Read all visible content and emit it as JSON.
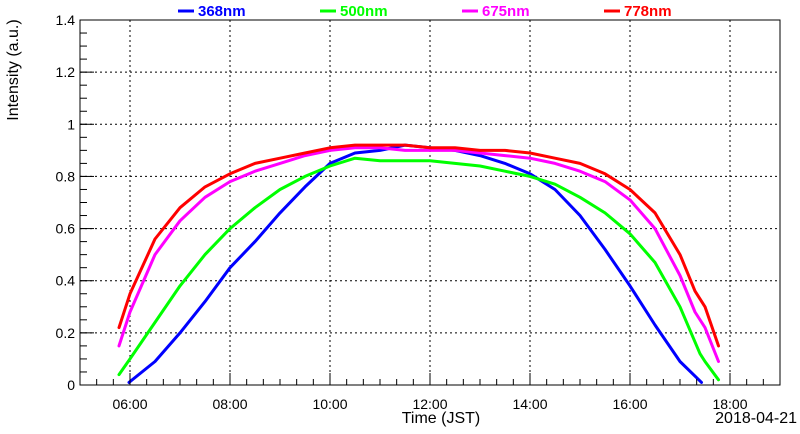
{
  "chart_data": {
    "type": "line",
    "title": "",
    "xlabel": "Time (JST)",
    "ylabel": "Intensity (a.u.)",
    "date_label": "2018-04-21",
    "x_unit": "hour of day (JST)",
    "xlim": [
      5.0,
      19.0
    ],
    "ylim": [
      0,
      1.4
    ],
    "x_ticks": [
      6,
      8,
      10,
      12,
      14,
      16,
      18
    ],
    "x_tick_labels": [
      "06:00",
      "08:00",
      "10:00",
      "12:00",
      "14:00",
      "16:00",
      "18:00"
    ],
    "y_ticks": [
      0,
      0.2,
      0.4,
      0.6,
      0.8,
      1.0,
      1.2,
      1.4
    ],
    "y_tick_labels": [
      "0",
      "0.2",
      "0.4",
      "0.6",
      "0.8",
      "1",
      "1.2",
      "1.4"
    ],
    "grid": true,
    "legend": "top",
    "series": [
      {
        "name": "368nm",
        "color": "#0000ff",
        "x": [
          5.98,
          6.5,
          7.0,
          7.5,
          8.0,
          8.5,
          9.0,
          9.5,
          10.0,
          10.5,
          11.0,
          11.5,
          12.0,
          12.5,
          13.0,
          13.5,
          14.0,
          14.5,
          15.0,
          15.5,
          16.0,
          16.5,
          17.0,
          17.43
        ],
        "y": [
          0.01,
          0.09,
          0.2,
          0.32,
          0.45,
          0.55,
          0.66,
          0.76,
          0.85,
          0.89,
          0.9,
          0.92,
          0.91,
          0.9,
          0.88,
          0.85,
          0.81,
          0.75,
          0.65,
          0.52,
          0.38,
          0.23,
          0.09,
          0.01
        ]
      },
      {
        "name": "500nm",
        "color": "#00ff00",
        "x": [
          5.78,
          6.0,
          6.5,
          7.0,
          7.5,
          8.0,
          8.5,
          9.0,
          9.5,
          10.0,
          10.5,
          11.0,
          11.5,
          12.0,
          12.5,
          13.0,
          13.5,
          14.0,
          14.5,
          15.0,
          15.5,
          16.0,
          16.5,
          17.0,
          17.4,
          17.5,
          17.77
        ],
        "y": [
          0.04,
          0.1,
          0.24,
          0.38,
          0.5,
          0.6,
          0.68,
          0.75,
          0.8,
          0.84,
          0.87,
          0.86,
          0.86,
          0.86,
          0.85,
          0.84,
          0.82,
          0.8,
          0.77,
          0.72,
          0.66,
          0.58,
          0.47,
          0.3,
          0.12,
          0.09,
          0.02
        ]
      },
      {
        "name": "675nm",
        "color": "#ff00ff",
        "x": [
          5.78,
          6.0,
          6.5,
          7.0,
          7.5,
          8.0,
          8.5,
          9.0,
          9.5,
          10.0,
          10.5,
          11.0,
          11.5,
          12.0,
          12.5,
          13.0,
          13.5,
          14.0,
          14.5,
          15.0,
          15.5,
          16.0,
          16.5,
          17.0,
          17.3,
          17.5,
          17.77
        ],
        "y": [
          0.15,
          0.28,
          0.5,
          0.63,
          0.72,
          0.78,
          0.82,
          0.85,
          0.88,
          0.9,
          0.91,
          0.91,
          0.9,
          0.9,
          0.9,
          0.89,
          0.88,
          0.87,
          0.85,
          0.82,
          0.78,
          0.71,
          0.6,
          0.42,
          0.28,
          0.22,
          0.09
        ]
      },
      {
        "name": "778nm",
        "color": "#ff0000",
        "x": [
          5.78,
          6.0,
          6.5,
          7.0,
          7.5,
          8.0,
          8.5,
          9.0,
          9.5,
          10.0,
          10.5,
          11.0,
          11.5,
          12.0,
          12.5,
          13.0,
          13.5,
          14.0,
          14.5,
          15.0,
          15.5,
          16.0,
          16.5,
          17.0,
          17.3,
          17.5,
          17.77
        ],
        "y": [
          0.22,
          0.35,
          0.56,
          0.68,
          0.76,
          0.81,
          0.85,
          0.87,
          0.89,
          0.91,
          0.92,
          0.92,
          0.92,
          0.91,
          0.91,
          0.9,
          0.9,
          0.89,
          0.87,
          0.85,
          0.81,
          0.75,
          0.66,
          0.5,
          0.36,
          0.3,
          0.15
        ]
      }
    ]
  }
}
